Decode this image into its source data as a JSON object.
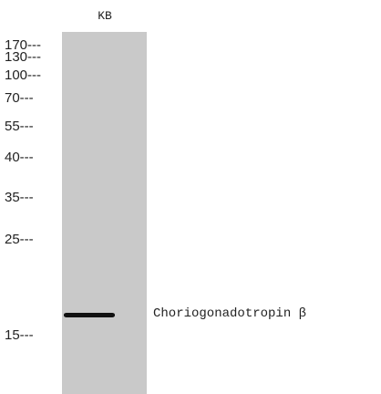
{
  "lane": {
    "label": "KB"
  },
  "markers": [
    "170---",
    "130---",
    "100---",
    "70---",
    "55---",
    "40---",
    "35---",
    "25---",
    "15---"
  ],
  "target_label": "Choriogonadotropin β"
}
